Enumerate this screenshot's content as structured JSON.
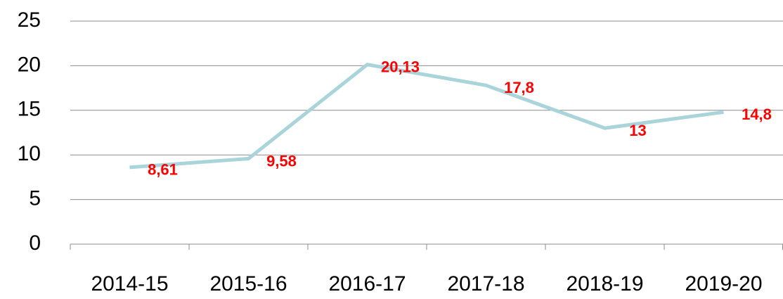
{
  "chart_data": {
    "type": "line",
    "categories": [
      "2014-15",
      "2015-16",
      "2016-17",
      "2017-18",
      "2018-19",
      "2019-20"
    ],
    "values": [
      8.61,
      9.58,
      20.13,
      17.8,
      13,
      14.8
    ],
    "value_labels": [
      "8,61",
      "9,58",
      "20,13",
      "17,8",
      "13",
      "14,8"
    ],
    "color": "#a8d4da",
    "label_color": "#ff0000",
    "ylim": [
      0,
      25
    ],
    "yticks": [
      0,
      5,
      10,
      15,
      20,
      25
    ],
    "grid": true
  }
}
